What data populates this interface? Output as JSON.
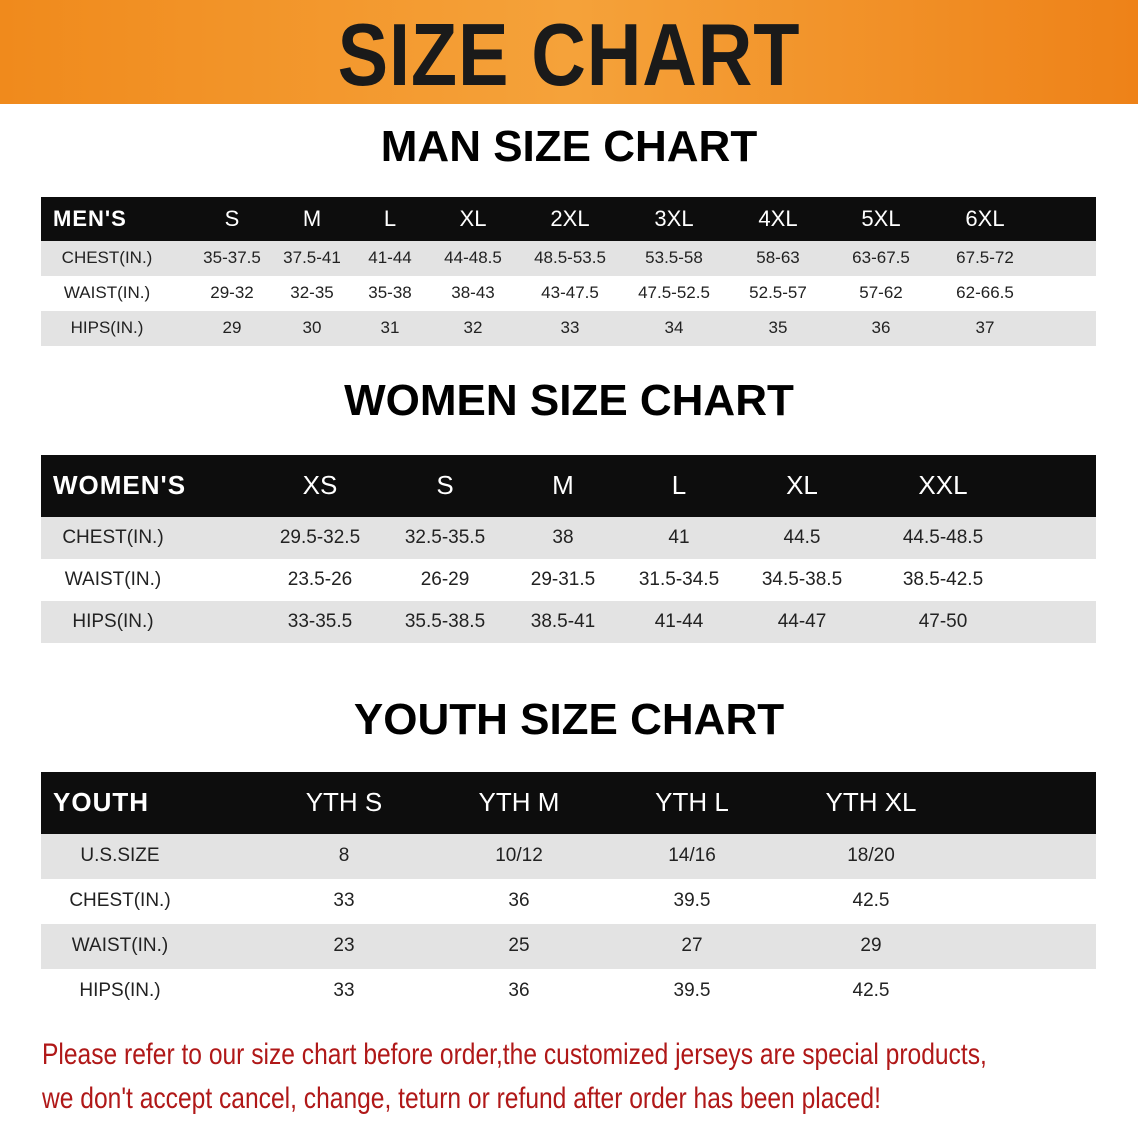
{
  "banner_title": "SIZE CHART",
  "men": {
    "title": "MAN SIZE CHART",
    "header": [
      "MEN'S",
      "S",
      "M",
      "L",
      "XL",
      "2XL",
      "3XL",
      "4XL",
      "5XL",
      "6XL"
    ],
    "rows": [
      [
        "CHEST(IN.)",
        "35-37.5",
        "37.5-41",
        "41-44",
        "44-48.5",
        "48.5-53.5",
        "53.5-58",
        "58-63",
        "63-67.5",
        "67.5-72"
      ],
      [
        "WAIST(IN.)",
        "29-32",
        "32-35",
        "35-38",
        "38-43",
        "43-47.5",
        "47.5-52.5",
        "52.5-57",
        "57-62",
        "62-66.5"
      ],
      [
        "HIPS(IN.)",
        "29",
        "30",
        "31",
        "32",
        "33",
        "34",
        "35",
        "36",
        "37"
      ]
    ]
  },
  "women": {
    "title": "WOMEN SIZE CHART",
    "header": [
      "WOMEN'S",
      "XS",
      "S",
      "M",
      "L",
      "XL",
      "XXL"
    ],
    "rows": [
      [
        "CHEST(IN.)",
        "29.5-32.5",
        "32.5-35.5",
        "38",
        "41",
        "44.5",
        "44.5-48.5"
      ],
      [
        "WAIST(IN.)",
        "23.5-26",
        "26-29",
        "29-31.5",
        "31.5-34.5",
        "34.5-38.5",
        "38.5-42.5"
      ],
      [
        "HIPS(IN.)",
        "33-35.5",
        "35.5-38.5",
        "38.5-41",
        "41-44",
        "44-47",
        "47-50"
      ]
    ]
  },
  "youth": {
    "title": "YOUTH SIZE CHART",
    "header": [
      "YOUTH",
      "YTH S",
      "YTH M",
      "YTH L",
      "YTH XL"
    ],
    "rows": [
      [
        "U.S.SIZE",
        "8",
        "10/12",
        "14/16",
        "18/20"
      ],
      [
        "CHEST(IN.)",
        "33",
        "36",
        "39.5",
        "42.5"
      ],
      [
        "WAIST(IN.)",
        "23",
        "25",
        "27",
        "29"
      ],
      [
        "HIPS(IN.)",
        "33",
        "36",
        "39.5",
        "42.5"
      ]
    ]
  },
  "notice": [
    "Please refer to our size chart before order,the customized jerseys are special products,",
    "we don't accept cancel, change, teturn or refund after order has been placed!"
  ],
  "colors": {
    "banner": "#f08a1c",
    "header_row": "#0d0d0d",
    "stripe": "#e3e3e3",
    "notice": "#b01818"
  }
}
